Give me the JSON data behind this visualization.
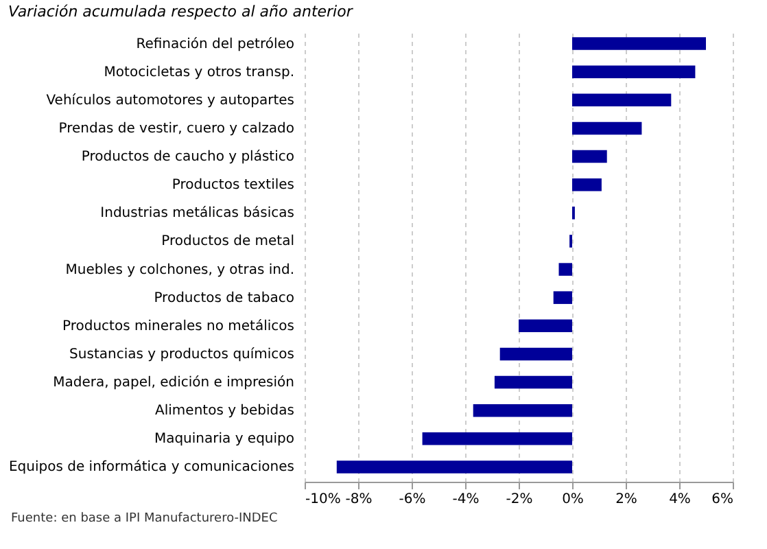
{
  "chart_data": {
    "type": "bar",
    "orientation": "horizontal",
    "title": "Variación acumulada respecto al año anterior",
    "categories": [
      "Refinación del petróleo",
      "Motocicletas y otros transp.",
      "Vehículos automotores y autopartes",
      "Prendas de vestir, cuero y calzado",
      "Productos de caucho y plástico",
      "Productos textiles",
      "Industrias metálicas básicas",
      "Productos de metal",
      "Muebles y colchones, y otras ind.",
      "Productos de tabaco",
      "Productos minerales no metálicos",
      "Sustancias y productos químicos",
      "Madera, papel, edición e impresión",
      "Alimentos y bebidas",
      "Maquinaria y equipo",
      "Equipos de informática y comunicaciones"
    ],
    "values": [
      5.0,
      4.6,
      3.7,
      2.6,
      1.3,
      1.1,
      0.1,
      -0.1,
      -0.5,
      -0.7,
      -2.0,
      -2.7,
      -2.9,
      -3.7,
      -5.6,
      -8.8
    ],
    "color": "#000099",
    "xlim": [
      -10,
      6
    ],
    "xticks": [
      {
        "value": -10,
        "label": "-10%"
      },
      {
        "value": -8,
        "label": "-8%"
      },
      {
        "value": -6,
        "label": "-6%"
      },
      {
        "value": -4,
        "label": "-4%"
      },
      {
        "value": -2,
        "label": "-2%"
      },
      {
        "value": 0,
        "label": "0%"
      },
      {
        "value": 2,
        "label": "2%"
      },
      {
        "value": 4,
        "label": "4%"
      },
      {
        "value": 6,
        "label": "6%"
      }
    ],
    "grid": "x",
    "annotations": [
      "Fuente: en base a IPI Manufacturero-INDEC"
    ]
  }
}
